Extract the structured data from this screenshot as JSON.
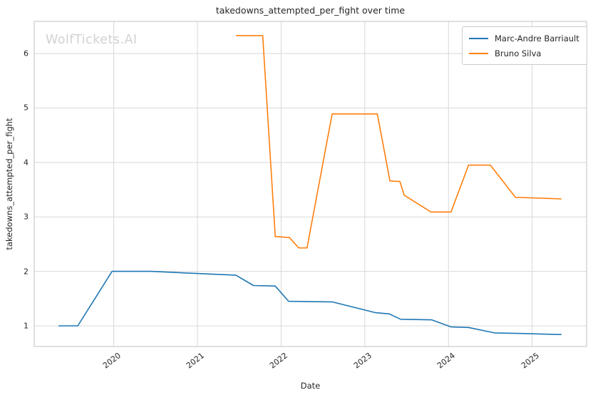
{
  "watermark": "WolfTickets.AI",
  "chart_data": {
    "type": "line",
    "title": "takedowns_attempted_per_fight over time",
    "xlabel": "Date",
    "ylabel": "takedowns_attempted_per_fight",
    "x_ticks": [
      "2020",
      "2021",
      "2022",
      "2023",
      "2024",
      "2025"
    ],
    "x_tick_values": [
      2020,
      2021,
      2022,
      2023,
      2024,
      2025
    ],
    "y_ticks": [
      "1",
      "2",
      "3",
      "4",
      "5",
      "6"
    ],
    "y_tick_values": [
      1,
      2,
      3,
      4,
      5,
      6
    ],
    "xlim": [
      2019.05,
      2025.65
    ],
    "ylim": [
      0.62,
      6.59
    ],
    "grid": true,
    "legend_position": "upper right",
    "series": [
      {
        "name": "Marc-Andre Barriault",
        "color": "#1f77b4",
        "x": [
          2019.34,
          2019.57,
          2019.98,
          2020.45,
          2021.0,
          2021.46,
          2021.67,
          2021.93,
          2022.09,
          2022.61,
          2023.13,
          2023.29,
          2023.43,
          2023.8,
          2024.03,
          2024.24,
          2024.55,
          2024.87,
          2025.35
        ],
        "y": [
          1.0,
          1.0,
          2.0,
          2.0,
          1.96,
          1.93,
          1.74,
          1.73,
          1.45,
          1.44,
          1.24,
          1.22,
          1.12,
          1.11,
          0.98,
          0.97,
          0.87,
          0.86,
          0.84
        ]
      },
      {
        "name": "Bruno Silva",
        "color": "#ff7f0e",
        "x": [
          2021.46,
          2021.78,
          2021.93,
          2022.1,
          2022.21,
          2022.31,
          2022.61,
          2023.15,
          2023.3,
          2023.42,
          2023.47,
          2023.79,
          2024.03,
          2024.24,
          2024.5,
          2024.8,
          2025.35
        ],
        "y": [
          6.33,
          6.33,
          2.64,
          2.62,
          2.43,
          2.43,
          4.89,
          4.89,
          3.66,
          3.65,
          3.4,
          3.09,
          3.09,
          3.95,
          3.95,
          3.36,
          3.33
        ]
      }
    ]
  }
}
